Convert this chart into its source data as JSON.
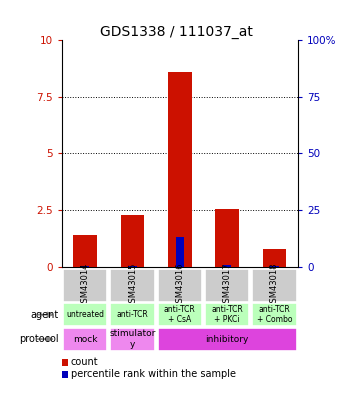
{
  "title": "GDS1338 / 111037_at",
  "samples": [
    "GSM43014",
    "GSM43015",
    "GSM43016",
    "GSM43017",
    "GSM43018"
  ],
  "count_values": [
    1.4,
    2.3,
    8.6,
    2.55,
    0.8
  ],
  "percentile_values": [
    0.5,
    0.6,
    13.0,
    0.7,
    0.5
  ],
  "ylim_left": [
    0,
    10
  ],
  "ylim_right": [
    0,
    100
  ],
  "yticks_left": [
    0,
    2.5,
    5.0,
    7.5,
    10
  ],
  "yticks_right": [
    0,
    25,
    50,
    75,
    100
  ],
  "agent_labels": [
    "untreated",
    "anti-TCR",
    "anti-TCR\n+ CsA",
    "anti-TCR\n+ PKCi",
    "anti-TCR\n+ Combo"
  ],
  "agent_bg_color": "#bbffbb",
  "sample_header_bg": "#cccccc",
  "bar_color_count": "#cc1100",
  "bar_color_percentile": "#0000bb",
  "protocol_mock_color": "#ee88ee",
  "protocol_stimulatory_color": "#ee88ee",
  "protocol_inhibitory_color": "#dd44dd",
  "title_fontsize": 10,
  "tick_fontsize": 7.5,
  "label_fontsize": 7
}
